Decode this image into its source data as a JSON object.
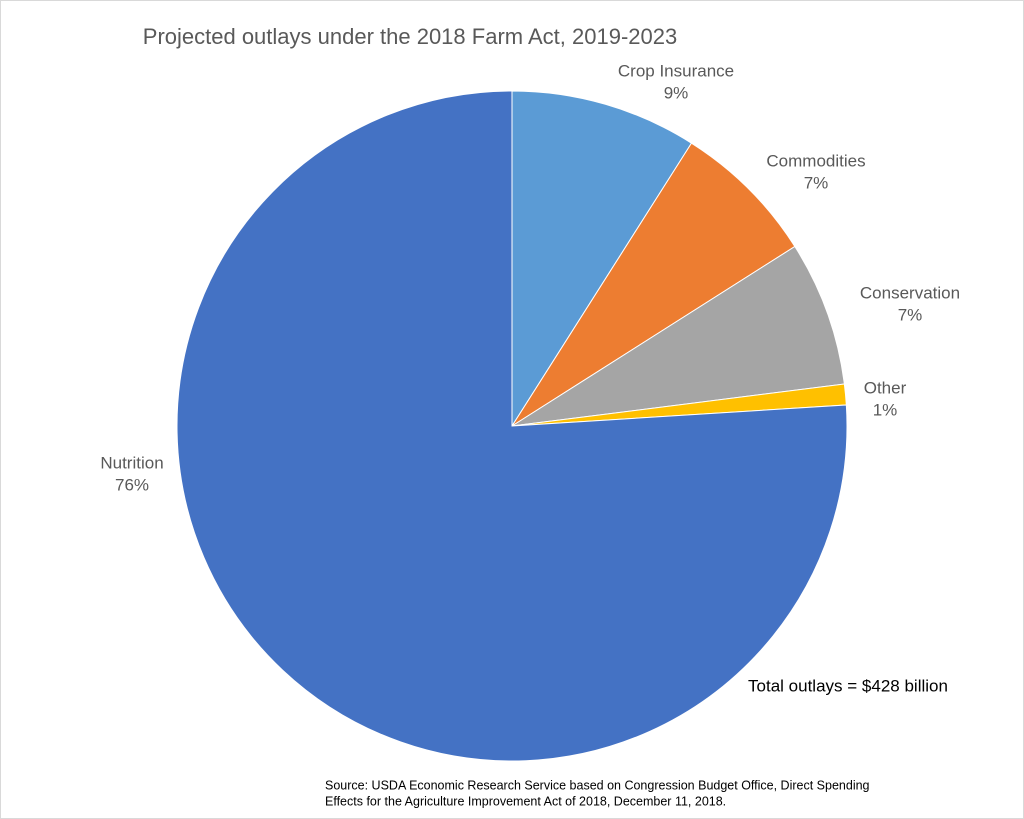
{
  "chart_data": {
    "type": "pie",
    "title": "Projected outlays under the 2018 Farm Act, 2019-2023",
    "categories": [
      "Crop Insurance",
      "Commodities",
      "Conservation",
      "Other",
      "Nutrition"
    ],
    "values": [
      9,
      7,
      7,
      1,
      76
    ],
    "value_labels": [
      "9%",
      "7%",
      "7%",
      "1%",
      "76%"
    ],
    "colors": [
      "#5b9bd5",
      "#ed7d31",
      "#a5a5a5",
      "#ffc000",
      "#4472c4"
    ],
    "annotations": [
      "Total outlays = $428 billion"
    ],
    "source": [
      "Source: USDA Economic Research Service based on Congression Budget Office, Direct Spending",
      "Effects for the Agriculture Improvement Act of 2018, December 11, 2018."
    ]
  }
}
